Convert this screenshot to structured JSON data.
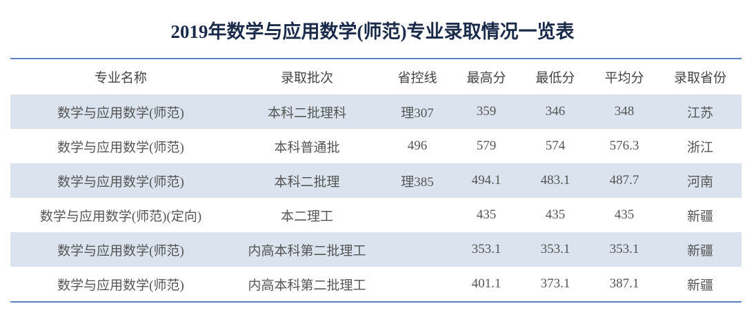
{
  "title": "2019年数学与应用数学(师范)专业录取情况一览表",
  "table": {
    "headers": [
      "专业名称",
      "录取批次",
      "省控线",
      "最高分",
      "最低分",
      "平均分",
      "录取省份"
    ],
    "rows": [
      [
        "数学与应用数学(师范)",
        "本科二批理科",
        "理307",
        "359",
        "346",
        "348",
        "江苏"
      ],
      [
        "数学与应用数学(师范)",
        "本科普通批",
        "496",
        "579",
        "574",
        "576.3",
        "浙江"
      ],
      [
        "数学与应用数学(师范)",
        "本科二批理",
        "理385",
        "494.1",
        "483.1",
        "487.7",
        "河南"
      ],
      [
        "数学与应用数学(师范)(定向)",
        "本二理工",
        null,
        "435",
        "435",
        "435",
        "新疆"
      ],
      [
        "数学与应用数学(师范)",
        "内高本科第二批理工",
        null,
        "353.1",
        "353.1",
        "353.1",
        "新疆"
      ],
      [
        "数学与应用数学(师范)",
        "内高本科第二批理工",
        null,
        "401.1",
        "373.1",
        "387.1",
        "新疆"
      ]
    ]
  }
}
